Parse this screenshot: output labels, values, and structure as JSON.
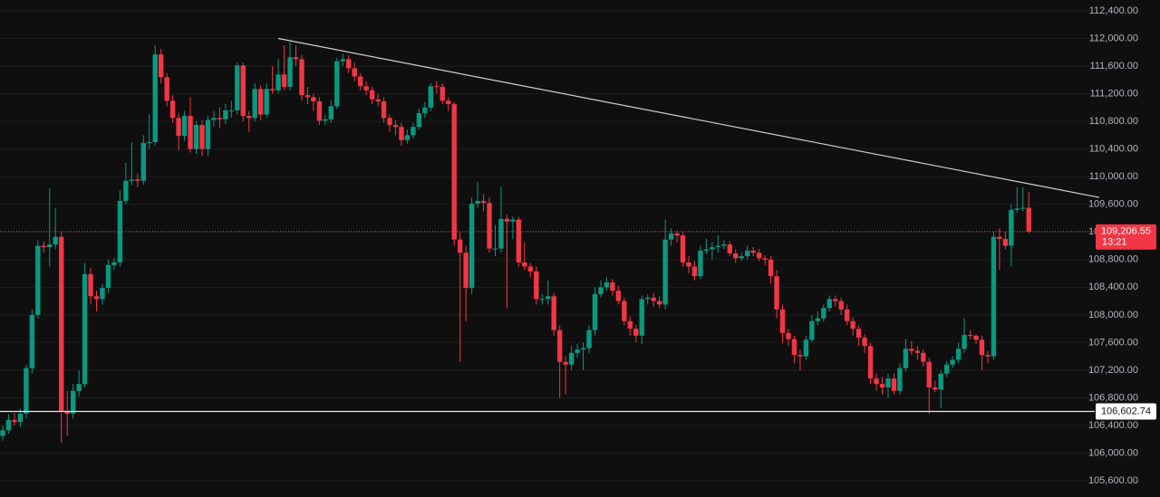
{
  "chart_data": {
    "type": "candlestick",
    "up_color": "#089981",
    "down_color": "#f23645",
    "ylim": [
      105365,
      112557
    ],
    "yticks": [
      {
        "value": 105600,
        "label": "105,600.00"
      },
      {
        "value": 106000,
        "label": "106,000.00"
      },
      {
        "value": 106400,
        "label": "106,400.00"
      },
      {
        "value": 106800,
        "label": "106,800.00"
      },
      {
        "value": 107200,
        "label": "107,200.00"
      },
      {
        "value": 107600,
        "label": "107,600.00"
      },
      {
        "value": 108000,
        "label": "108,000.00"
      },
      {
        "value": 108400,
        "label": "108,400.00"
      },
      {
        "value": 108800,
        "label": "108,800.00"
      },
      {
        "value": 109200,
        "label": "109,200.00"
      },
      {
        "value": 109600,
        "label": "109,600.00"
      },
      {
        "value": 110000,
        "label": "110,000.00"
      },
      {
        "value": 110400,
        "label": "110,400.00"
      },
      {
        "value": 110800,
        "label": "110,800.00"
      },
      {
        "value": 111200,
        "label": "111,200.00"
      },
      {
        "value": 111600,
        "label": "111,600.00"
      },
      {
        "value": 112000,
        "label": "112,000.00"
      },
      {
        "value": 112400,
        "label": "112,400.00"
      }
    ],
    "last_price": {
      "value": 109206.55,
      "label": "109,206.55",
      "countdown": "13:21"
    },
    "horizontal_line": {
      "value": 106602.74,
      "label": "106,602.74"
    },
    "trendline": {
      "from": {
        "index": 47,
        "value": 112000
      },
      "to": {
        "index": 187,
        "value": 109700
      }
    },
    "ohlc": [
      [
        106250,
        106400,
        106180,
        106330
      ],
      [
        106330,
        106560,
        106280,
        106480
      ],
      [
        106480,
        106580,
        106400,
        106450
      ],
      [
        106450,
        106640,
        106380,
        106570
      ],
      [
        106570,
        107280,
        106500,
        107230
      ],
      [
        107230,
        108080,
        107150,
        108000
      ],
      [
        108000,
        109080,
        107950,
        109000
      ],
      [
        109000,
        109060,
        108900,
        108980
      ],
      [
        108980,
        109830,
        108700,
        109020
      ],
      [
        109020,
        109550,
        108950,
        109130
      ],
      [
        109130,
        109200,
        106150,
        106600
      ],
      [
        106600,
        106900,
        106250,
        106570
      ],
      [
        106570,
        107000,
        106500,
        106900
      ],
      [
        106900,
        107200,
        106820,
        107000
      ],
      [
        107000,
        108750,
        106950,
        108590
      ],
      [
        108590,
        108680,
        108150,
        108270
      ],
      [
        108270,
        108350,
        108050,
        108230
      ],
      [
        108230,
        108450,
        108150,
        108390
      ],
      [
        108390,
        108800,
        108320,
        108720
      ],
      [
        108720,
        108820,
        108650,
        108760
      ],
      [
        108760,
        109800,
        108700,
        109650
      ],
      [
        109650,
        110200,
        109600,
        109940
      ],
      [
        109940,
        110500,
        109880,
        109960
      ],
      [
        109960,
        110050,
        109850,
        109940
      ],
      [
        109940,
        110600,
        109880,
        110490
      ],
      [
        110490,
        110900,
        110400,
        110500
      ],
      [
        110500,
        111900,
        110450,
        111770
      ],
      [
        111770,
        111850,
        111350,
        111440
      ],
      [
        111440,
        111500,
        111020,
        111100
      ],
      [
        111100,
        111180,
        110780,
        110850
      ],
      [
        110850,
        110920,
        110380,
        110590
      ],
      [
        110590,
        110950,
        110520,
        110880
      ],
      [
        110880,
        111150,
        110350,
        110400
      ],
      [
        110400,
        110800,
        110330,
        110750
      ],
      [
        110750,
        110820,
        110300,
        110400
      ],
      [
        110400,
        110880,
        110300,
        110820
      ],
      [
        110820,
        110950,
        110720,
        110850
      ],
      [
        110850,
        111000,
        110700,
        110830
      ],
      [
        110830,
        111050,
        110760,
        110960
      ],
      [
        110960,
        111100,
        110850,
        110960
      ],
      [
        110960,
        111650,
        110900,
        111610
      ],
      [
        111610,
        111650,
        110800,
        110880
      ],
      [
        110880,
        110950,
        110650,
        110850
      ],
      [
        110850,
        111350,
        110800,
        111270
      ],
      [
        111270,
        111320,
        110820,
        110900
      ],
      [
        110900,
        111350,
        110850,
        111270
      ],
      [
        111270,
        111600,
        111200,
        111250
      ],
      [
        111250,
        111700,
        111200,
        111480
      ],
      [
        111480,
        111900,
        111250,
        111300
      ],
      [
        111300,
        111950,
        111250,
        111730
      ],
      [
        111730,
        111900,
        111600,
        111700
      ],
      [
        111700,
        111760,
        111100,
        111180
      ],
      [
        111180,
        111300,
        111050,
        111150
      ],
      [
        111150,
        111200,
        110950,
        111090
      ],
      [
        111090,
        111150,
        110750,
        110810
      ],
      [
        110810,
        110900,
        110750,
        110830
      ],
      [
        110830,
        111100,
        110780,
        111020
      ],
      [
        111020,
        111720,
        110980,
        111670
      ],
      [
        111670,
        111780,
        111600,
        111700
      ],
      [
        111700,
        111760,
        111500,
        111570
      ],
      [
        111570,
        111650,
        111380,
        111450
      ],
      [
        111450,
        111500,
        111250,
        111310
      ],
      [
        111310,
        111380,
        111180,
        111250
      ],
      [
        111250,
        111300,
        111050,
        111120
      ],
      [
        111120,
        111200,
        111020,
        111090
      ],
      [
        111090,
        111150,
        110780,
        110850
      ],
      [
        110850,
        110900,
        110650,
        110750
      ],
      [
        110750,
        110820,
        110600,
        110720
      ],
      [
        110720,
        110780,
        110450,
        110530
      ],
      [
        110530,
        110680,
        110480,
        110600
      ],
      [
        110600,
        110780,
        110550,
        110720
      ],
      [
        110720,
        110980,
        110680,
        110920
      ],
      [
        110920,
        111080,
        110850,
        111000
      ],
      [
        111000,
        111350,
        110950,
        111310
      ],
      [
        111310,
        111380,
        111200,
        111300
      ],
      [
        111300,
        111350,
        111050,
        111100
      ],
      [
        111100,
        111150,
        110950,
        111050
      ],
      [
        111050,
        111080,
        109000,
        109090
      ],
      [
        109090,
        109200,
        107320,
        108900
      ],
      [
        108900,
        109000,
        107910,
        108390
      ],
      [
        108390,
        109700,
        108300,
        109610
      ],
      [
        109610,
        109920,
        109550,
        109650
      ],
      [
        109650,
        109750,
        109500,
        109620
      ],
      [
        109620,
        109700,
        108900,
        108960
      ],
      [
        108960,
        109300,
        108850,
        108960
      ],
      [
        108960,
        109850,
        108900,
        109390
      ],
      [
        109390,
        109450,
        108100,
        109350
      ],
      [
        109350,
        109420,
        109100,
        109380
      ],
      [
        109380,
        109420,
        108700,
        108760
      ],
      [
        108760,
        109050,
        108650,
        108700
      ],
      [
        108700,
        108750,
        108550,
        108630
      ],
      [
        108630,
        108700,
        108150,
        108230
      ],
      [
        108230,
        108300,
        108150,
        108230
      ],
      [
        108230,
        108500,
        108150,
        108270
      ],
      [
        108270,
        108320,
        107700,
        107780
      ],
      [
        107780,
        107850,
        106800,
        107320
      ],
      [
        107320,
        107400,
        106850,
        107280
      ],
      [
        107280,
        107550,
        107200,
        107450
      ],
      [
        107450,
        107580,
        107380,
        107500
      ],
      [
        107500,
        107600,
        107200,
        107520
      ],
      [
        107520,
        107850,
        107450,
        107780
      ],
      [
        107780,
        108400,
        107700,
        108300
      ],
      [
        108300,
        108500,
        108250,
        108400
      ],
      [
        108400,
        108550,
        108350,
        108470
      ],
      [
        108470,
        108520,
        108280,
        108350
      ],
      [
        108350,
        108420,
        108150,
        108200
      ],
      [
        108200,
        108250,
        107850,
        107910
      ],
      [
        107910,
        107980,
        107700,
        107800
      ],
      [
        107800,
        107850,
        107600,
        107700
      ],
      [
        107700,
        108280,
        107580,
        108230
      ],
      [
        108230,
        108300,
        108150,
        108250
      ],
      [
        108250,
        108320,
        108120,
        108200
      ],
      [
        108200,
        108270,
        108100,
        108150
      ],
      [
        108150,
        109380,
        108080,
        109090
      ],
      [
        109090,
        109250,
        109000,
        109180
      ],
      [
        109180,
        109220,
        109050,
        109150
      ],
      [
        109150,
        109200,
        108700,
        108760
      ],
      [
        108760,
        108850,
        108600,
        108700
      ],
      [
        108700,
        108780,
        108500,
        108560
      ],
      [
        108560,
        109000,
        108520,
        108930
      ],
      [
        108930,
        109100,
        108880,
        108950
      ],
      [
        108950,
        109050,
        108800,
        108980
      ],
      [
        108980,
        109150,
        108900,
        109000
      ],
      [
        109000,
        109080,
        108950,
        109020
      ],
      [
        109020,
        109070,
        108850,
        108890
      ],
      [
        108890,
        108950,
        108750,
        108820
      ],
      [
        108820,
        108900,
        108780,
        108850
      ],
      [
        108850,
        109000,
        108800,
        108930
      ],
      [
        108930,
        108980,
        108850,
        108900
      ],
      [
        108900,
        108950,
        108780,
        108820
      ],
      [
        108820,
        108860,
        108720,
        108800
      ],
      [
        108800,
        108850,
        108450,
        108560
      ],
      [
        108560,
        108650,
        107950,
        108080
      ],
      [
        108080,
        108150,
        107600,
        107740
      ],
      [
        107740,
        107800,
        107550,
        107650
      ],
      [
        107650,
        107700,
        107300,
        107420
      ],
      [
        107420,
        107500,
        107200,
        107400
      ],
      [
        107400,
        107700,
        107350,
        107640
      ],
      [
        107640,
        108000,
        107600,
        107910
      ],
      [
        107910,
        108050,
        107850,
        107950
      ],
      [
        107950,
        108150,
        107900,
        108100
      ],
      [
        108100,
        108280,
        108050,
        108230
      ],
      [
        108230,
        108280,
        108120,
        108200
      ],
      [
        108200,
        108250,
        108000,
        108080
      ],
      [
        108080,
        108150,
        107850,
        107910
      ],
      [
        107910,
        107970,
        107700,
        107800
      ],
      [
        107800,
        107850,
        107550,
        107670
      ],
      [
        107670,
        107720,
        107450,
        107550
      ],
      [
        107550,
        107600,
        107000,
        107080
      ],
      [
        107080,
        107150,
        106900,
        107000
      ],
      [
        107000,
        107100,
        106850,
        106950
      ],
      [
        106950,
        107150,
        106800,
        107080
      ],
      [
        107080,
        107150,
        106850,
        106900
      ],
      [
        106900,
        107300,
        106850,
        107230
      ],
      [
        107230,
        107650,
        107180,
        107510
      ],
      [
        107510,
        107620,
        107420,
        107480
      ],
      [
        107480,
        107550,
        107350,
        107450
      ],
      [
        107450,
        107500,
        107250,
        107320
      ],
      [
        107320,
        107380,
        106570,
        106950
      ],
      [
        106950,
        107050,
        106880,
        106920
      ],
      [
        106920,
        107200,
        106650,
        107150
      ],
      [
        107150,
        107330,
        107100,
        107280
      ],
      [
        107280,
        107400,
        107230,
        107350
      ],
      [
        107350,
        107600,
        107300,
        107510
      ],
      [
        107510,
        107950,
        107450,
        107710
      ],
      [
        107710,
        107780,
        107650,
        107700
      ],
      [
        107700,
        107720,
        107580,
        107640
      ],
      [
        107640,
        107700,
        107200,
        107420
      ],
      [
        107420,
        107480,
        107300,
        107400
      ],
      [
        107400,
        109200,
        107350,
        109130
      ],
      [
        109130,
        109250,
        108650,
        109100
      ],
      [
        109100,
        109200,
        108950,
        109000
      ],
      [
        109000,
        109600,
        108700,
        109520
      ],
      [
        109520,
        109850,
        109480,
        109540
      ],
      [
        109540,
        109850,
        109500,
        109550
      ],
      [
        109550,
        109780,
        109180,
        109206.55
      ]
    ]
  }
}
